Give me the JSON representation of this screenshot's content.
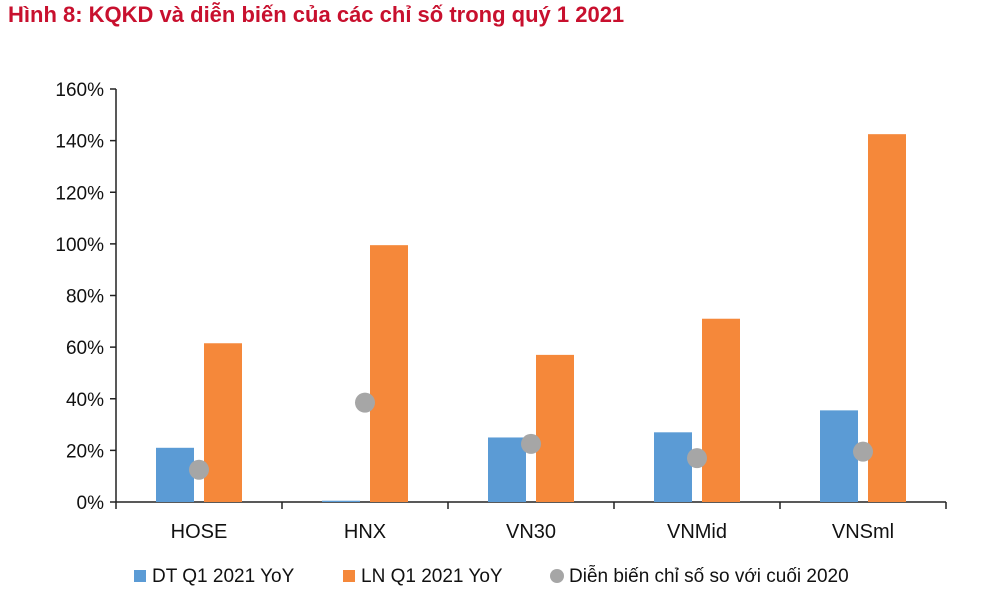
{
  "figure": {
    "title": "Hình 8: KQKD và diễn biến của các chỉ số trong quý 1 2021"
  },
  "chart_data": {
    "type": "bar",
    "title": "",
    "xlabel": "",
    "ylabel": "",
    "categories": [
      "HOSE",
      "HNX",
      "VN30",
      "VNMid",
      "VNSml"
    ],
    "ylim": [
      0,
      160
    ],
    "yticks": [
      0,
      20,
      40,
      60,
      80,
      100,
      120,
      140,
      160
    ],
    "ytick_labels": [
      "0%",
      "20%",
      "40%",
      "60%",
      "80%",
      "100%",
      "120%",
      "140%",
      "160%"
    ],
    "grid": false,
    "legend_position": "bottom",
    "series": [
      {
        "name": "DT Q1 2021 YoY",
        "type": "bar",
        "color": "#5b9bd5",
        "values": [
          21,
          0.5,
          25,
          27,
          35.5
        ]
      },
      {
        "name": "LN Q1 2021 YoY",
        "type": "bar",
        "color": "#f5883a",
        "values": [
          61.5,
          99.5,
          57,
          71,
          142.5
        ]
      },
      {
        "name": "Diễn biến chỉ số so với cuối 2020",
        "type": "scatter",
        "color": "#a6a6a6",
        "values": [
          12.5,
          38.5,
          22.5,
          17,
          19.5
        ]
      }
    ]
  }
}
